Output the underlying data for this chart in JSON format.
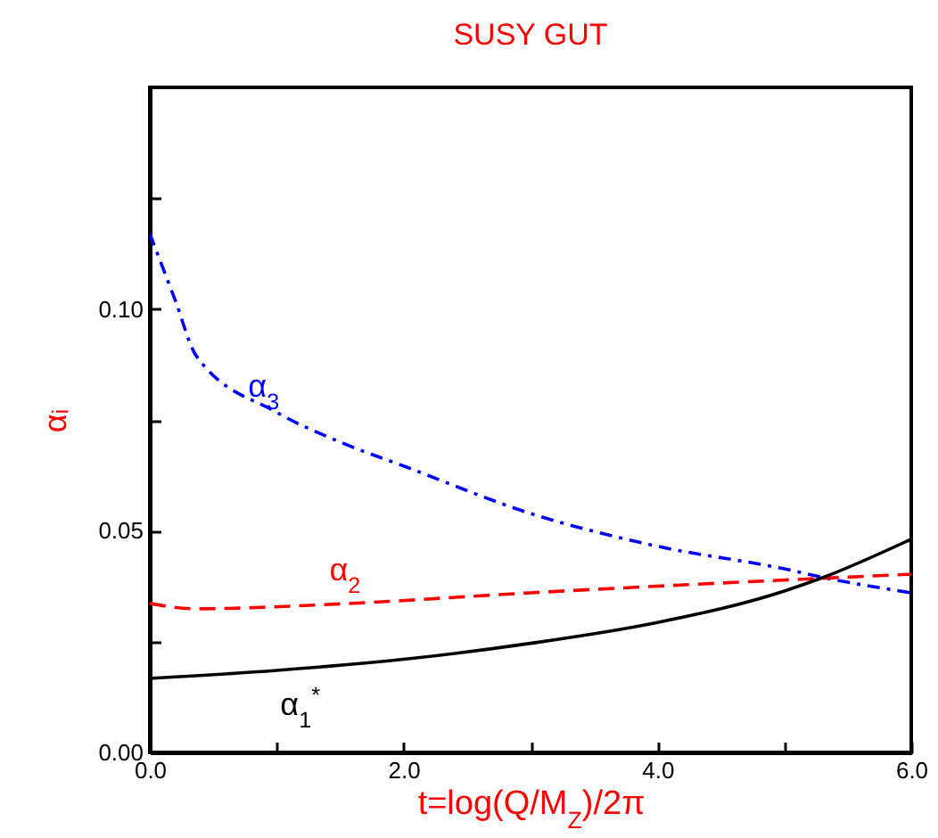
{
  "chart_data": {
    "type": "line",
    "title": "SUSY GUT",
    "xlabel": "t=log(Q/M$_{Z}$)/2π",
    "ylabel": "αᵢ",
    "xlim": [
      0,
      6
    ],
    "ylim": [
      0,
      0.15
    ],
    "xticks": [
      {
        "value": 0,
        "label": "0.0"
      },
      {
        "value": 1,
        "label": null
      },
      {
        "value": 2,
        "label": "2.0"
      },
      {
        "value": 3,
        "label": null
      },
      {
        "value": 4,
        "label": "4.0"
      },
      {
        "value": 5,
        "label": null
      },
      {
        "value": 6,
        "label": "6.0"
      }
    ],
    "yticks": [
      {
        "value": 0,
        "label": "0.00"
      },
      {
        "value": 0.025,
        "label": null
      },
      {
        "value": 0.05,
        "label": "0.05"
      },
      {
        "value": 0.075,
        "label": null
      },
      {
        "value": 0.1,
        "label": "0.10"
      },
      {
        "value": 0.125,
        "label": null
      }
    ],
    "series": [
      {
        "name": "α$_{3}$",
        "color": "#0000ff",
        "line_style": "dashdot",
        "x": [
          0,
          0.2,
          0.365,
          1,
          1.5,
          2,
          3,
          4,
          5,
          5.3,
          6
        ],
        "values": [
          0.117,
          0.102,
          0.0895,
          0.0767,
          0.07,
          0.0646,
          0.0539,
          0.0465,
          0.0414,
          0.0395,
          0.036
        ]
      },
      {
        "name": "α$_{2}$",
        "color": "#ff0000",
        "line_style": "dashed",
        "x": [
          0,
          0.365,
          1.5,
          3,
          6
        ],
        "values": [
          0.0336,
          0.0324,
          0.0335,
          0.036,
          0.0402
        ]
      },
      {
        "name": "α$_{1}$$^{*}$",
        "color": "#000000",
        "line_style": "solid",
        "x": [
          0,
          1,
          2,
          3,
          4,
          5,
          5.3,
          6
        ],
        "values": [
          0.0167,
          0.0185,
          0.021,
          0.0246,
          0.0293,
          0.0364,
          0.0394,
          0.0481
        ]
      }
    ]
  }
}
